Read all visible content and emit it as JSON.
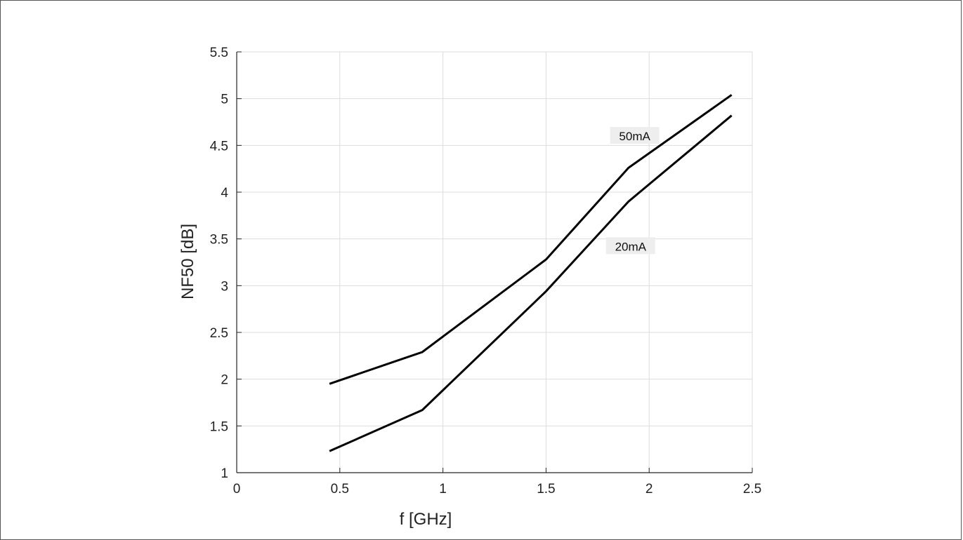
{
  "chart_data": {
    "type": "line",
    "title": "",
    "xlabel": "f [GHz]",
    "ylabel": "NF50 [dB]",
    "xlim": [
      0,
      2.5
    ],
    "ylim": [
      1,
      5.5
    ],
    "xticks": [
      "0",
      "0.5",
      "1",
      "1.5",
      "2",
      "2.5"
    ],
    "yticks": [
      "1",
      "1.5",
      "2",
      "2.5",
      "3",
      "3.5",
      "4",
      "4.5",
      "5",
      "5.5"
    ],
    "grid": true,
    "legend": "none",
    "series": [
      {
        "name": "50mA",
        "x": [
          0.45,
          0.9,
          1.5,
          1.9,
          2.4
        ],
        "y": [
          1.95,
          2.29,
          3.28,
          4.26,
          5.04
        ]
      },
      {
        "name": "20mA",
        "x": [
          0.45,
          0.9,
          1.5,
          1.9,
          2.4
        ],
        "y": [
          1.23,
          1.67,
          2.94,
          3.9,
          4.82
        ]
      }
    ],
    "annotations": [
      {
        "text": "50mA",
        "x": 1.93,
        "y": 4.6
      },
      {
        "text": "20mA",
        "x": 1.91,
        "y": 3.42
      }
    ],
    "colors": {
      "line": "#000000",
      "grid": "#dddddd",
      "axis": "#262626",
      "label_bg": "#eeeeee"
    }
  }
}
